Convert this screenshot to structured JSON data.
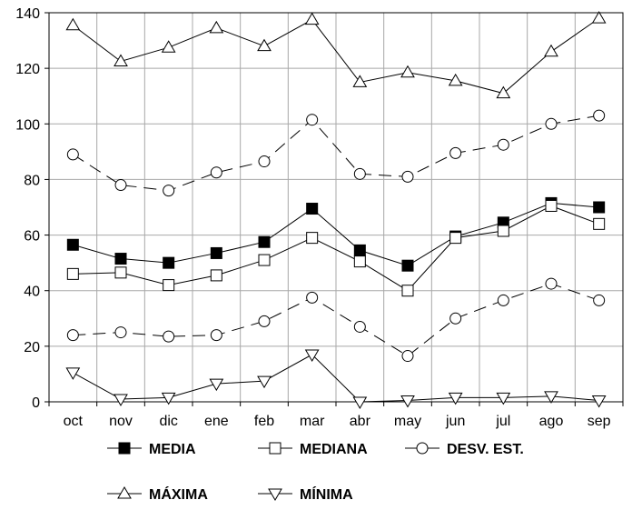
{
  "chart_data": {
    "type": "line",
    "categories": [
      "oct",
      "nov",
      "dic",
      "ene",
      "feb",
      "mar",
      "abr",
      "may",
      "jun",
      "jul",
      "ago",
      "sep"
    ],
    "ylim": [
      0,
      140
    ],
    "yticks": [
      0,
      20,
      40,
      60,
      80,
      100,
      120,
      140
    ],
    "grid": true,
    "legend_position": "bottom",
    "series": [
      {
        "name": "MEDIA",
        "marker": "square-filled",
        "dash": "solid",
        "values": [
          56.5,
          51.5,
          50,
          53.5,
          57.5,
          69.5,
          54.5,
          49,
          59.5,
          64.5,
          71.5,
          70
        ]
      },
      {
        "name": "MEDIANA",
        "marker": "square-open",
        "dash": "solid",
        "values": [
          46,
          46.5,
          42,
          45.5,
          51,
          59,
          50.5,
          40,
          59,
          61.5,
          70.5,
          64
        ]
      },
      {
        "name": "DESV. EST.",
        "marker": "circle-open",
        "dash": "dashed",
        "values": [
          89,
          78,
          76,
          82.5,
          86.5,
          101.5,
          82,
          81,
          89.5,
          92.5,
          100,
          103
        ]
      },
      {
        "name": "MÁXIMA",
        "marker": "triangle-up-open",
        "dash": "solid",
        "values": [
          135.5,
          122.5,
          127.5,
          134.5,
          128,
          137.5,
          115,
          118.5,
          115.5,
          111,
          126,
          138
        ]
      },
      {
        "name": "MÍNIMA",
        "marker": "triangle-down-open",
        "dash": "solid",
        "values": [
          10.5,
          1,
          1.5,
          6.5,
          7.5,
          17,
          0,
          0.5,
          1.5,
          1.5,
          2,
          0.5
        ]
      },
      {
        "name": "",
        "marker": "circle-open",
        "dash": "dashed",
        "values": [
          24,
          25,
          23.5,
          24,
          29,
          37.5,
          27,
          16.5,
          30,
          36.5,
          42.5,
          36.5
        ]
      }
    ]
  },
  "legend": [
    "MEDIA",
    "MEDIANA",
    "DESV. EST.",
    "MÁXIMA",
    "MÍNIMA"
  ]
}
